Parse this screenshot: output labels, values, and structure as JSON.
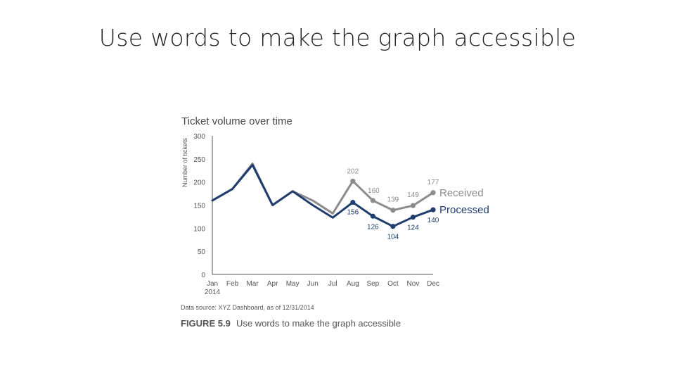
{
  "slide": {
    "title": "Use words to make the graph accessible"
  },
  "colors": {
    "received": "#8c8c8c",
    "processed": "#1f3d6e",
    "axis": "#555555"
  },
  "chart_data": {
    "type": "line",
    "title": "Ticket volume over time",
    "xlabel": "",
    "ylabel": "Number of tickets",
    "categories": [
      "Jan",
      "Feb",
      "Mar",
      "Apr",
      "May",
      "Jun",
      "Jul",
      "Aug",
      "Sep",
      "Oct",
      "Nov",
      "Dec"
    ],
    "x_sublabel": "2014",
    "ylim": [
      0,
      300
    ],
    "yticks": [
      0,
      50,
      100,
      150,
      200,
      250,
      300
    ],
    "grid": false,
    "legend": "right",
    "series": [
      {
        "name": "Received",
        "color": "#8c8c8c",
        "values": [
          160,
          185,
          240,
          150,
          180,
          160,
          132,
          202,
          160,
          139,
          149,
          177
        ],
        "labeled_from_index": 7
      },
      {
        "name": "Processed",
        "color": "#1f3d6e",
        "values": [
          160,
          185,
          237,
          150,
          180,
          150,
          123,
          156,
          126,
          104,
          124,
          140
        ],
        "labeled_from_index": 7
      }
    ],
    "source": "Data source: XYZ Dashboard, as of 12/31/2014",
    "figure_label": "FIGURE 5.9",
    "figure_caption": "Use words to make the graph accessible"
  }
}
